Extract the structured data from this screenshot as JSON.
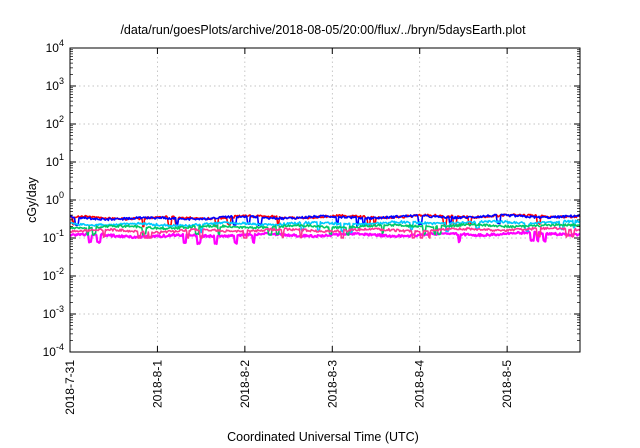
{
  "chart_data": {
    "type": "line",
    "title": "/data/run/goesPlots/archive/2018-08-05/20:00/flux/../bryn/5daysEarth.plot",
    "xlabel": "Coordinated Universal Time (UTC)",
    "ylabel": "cGy/day",
    "y_scale": "log",
    "ylim": [
      0.0001,
      10000
    ],
    "y_ticks": [
      {
        "base": "10",
        "exp": "-4",
        "value": 0.0001
      },
      {
        "base": "10",
        "exp": "-3",
        "value": 0.001
      },
      {
        "base": "10",
        "exp": "-2",
        "value": 0.01
      },
      {
        "base": "10",
        "exp": "-1",
        "value": 0.1
      },
      {
        "base": "10",
        "exp": "0",
        "value": 1
      },
      {
        "base": "10",
        "exp": "1",
        "value": 10
      },
      {
        "base": "10",
        "exp": "2",
        "value": 100
      },
      {
        "base": "10",
        "exp": "3",
        "value": 1000
      },
      {
        "base": "10",
        "exp": "4",
        "value": 10000
      }
    ],
    "xlim": [
      "2018-07-31 00:00",
      "2018-08-05 20:00"
    ],
    "x_ticks": [
      "2018-7-31",
      "2018-8-1",
      "2018-8-2",
      "2018-8-3",
      "2018-8-4",
      "2018-8-5"
    ],
    "grid": true,
    "legend": "none",
    "series": [
      {
        "color": "#ff00ff",
        "values_by_day": {
          "2018-7-31": 0.12,
          "2018-8-1": 0.11,
          "2018-8-2": 0.12,
          "2018-8-3": 0.12,
          "2018-8-4": 0.12,
          "2018-8-5": 0.13
        },
        "min": 0.06,
        "max": 0.18
      },
      {
        "color": "#ff0000",
        "values_by_day": {
          "2018-7-31": 0.35,
          "2018-8-1": 0.33,
          "2018-8-2": 0.36,
          "2018-8-3": 0.36,
          "2018-8-4": 0.37,
          "2018-8-5": 0.38
        },
        "min": 0.2,
        "max": 0.55
      },
      {
        "color": "#0000ff",
        "values_by_day": {
          "2018-7-31": 0.34,
          "2018-8-1": 0.32,
          "2018-8-2": 0.35,
          "2018-8-3": 0.35,
          "2018-8-4": 0.36,
          "2018-8-5": 0.37
        },
        "min": 0.12,
        "max": 0.5
      },
      {
        "color": "#00c8ff",
        "values_by_day": {
          "2018-7-31": 0.24,
          "2018-8-1": 0.22,
          "2018-8-2": 0.24,
          "2018-8-3": 0.24,
          "2018-8-4": 0.25,
          "2018-8-5": 0.26
        },
        "min": 0.12,
        "max": 0.32
      },
      {
        "color": "#00c864",
        "values_by_day": {
          "2018-7-31": 0.2,
          "2018-8-1": 0.19,
          "2018-8-2": 0.2,
          "2018-8-3": 0.2,
          "2018-8-4": 0.21,
          "2018-8-5": 0.21
        },
        "min": 0.12,
        "max": 0.26
      },
      {
        "color": "#ff3296",
        "values_by_day": {
          "2018-7-31": 0.16,
          "2018-8-1": 0.15,
          "2018-8-2": 0.16,
          "2018-8-3": 0.16,
          "2018-8-4": 0.16,
          "2018-8-5": 0.17
        },
        "min": 0.1,
        "max": 0.21
      }
    ]
  }
}
